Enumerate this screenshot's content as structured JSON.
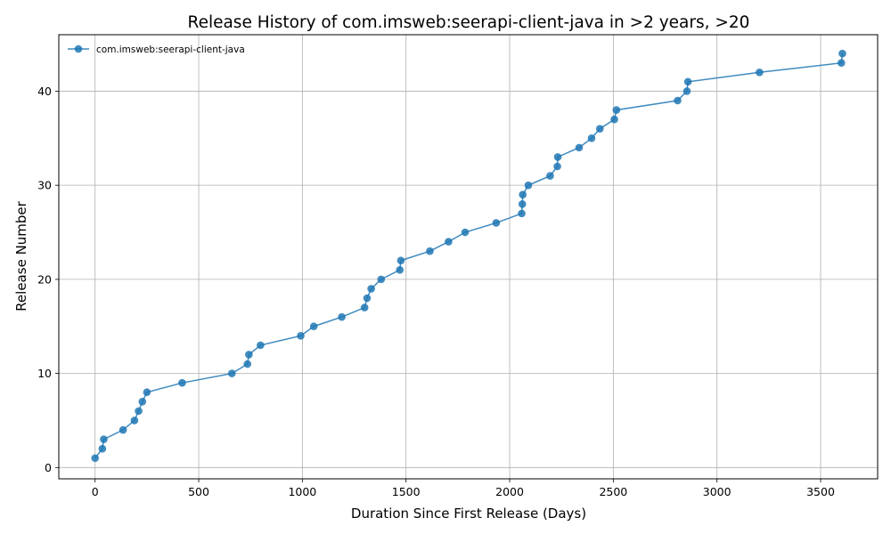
{
  "chart_data": {
    "type": "line",
    "title": "Release History of com.imsweb:seerapi-client-java in >2 years, >20",
    "xlabel": "Duration Since First Release (Days)",
    "ylabel": "Release Number",
    "xlim": [
      -175,
      3775
    ],
    "ylim": [
      -1.2,
      46
    ],
    "xticks": [
      0,
      500,
      1000,
      1500,
      2000,
      2500,
      3000,
      3500
    ],
    "yticks": [
      0,
      10,
      20,
      30,
      40
    ],
    "grid": true,
    "legend_position": "upper left",
    "line_color": "#1f77b4",
    "series": [
      {
        "name": "com.imsweb:seerapi-client-java",
        "x": [
          0,
          35,
          42,
          135,
          190,
          210,
          228,
          250,
          420,
          660,
          735,
          742,
          798,
          992,
          1055,
          1190,
          1300,
          1312,
          1332,
          1380,
          1470,
          1475,
          1615,
          1705,
          1785,
          1935,
          2058,
          2061,
          2063,
          2090,
          2195,
          2230,
          2232,
          2335,
          2395,
          2435,
          2505,
          2515,
          2810,
          2855,
          2860,
          3205,
          3600,
          3605
        ],
        "y": [
          1,
          2,
          3,
          4,
          5,
          6,
          7,
          8,
          9,
          10,
          11,
          12,
          13,
          14,
          15,
          16,
          17,
          18,
          19,
          20,
          21,
          22,
          23,
          24,
          25,
          26,
          27,
          28,
          29,
          30,
          31,
          32,
          33,
          34,
          35,
          36,
          37,
          38,
          39,
          40,
          41,
          42,
          43,
          44
        ]
      }
    ]
  }
}
